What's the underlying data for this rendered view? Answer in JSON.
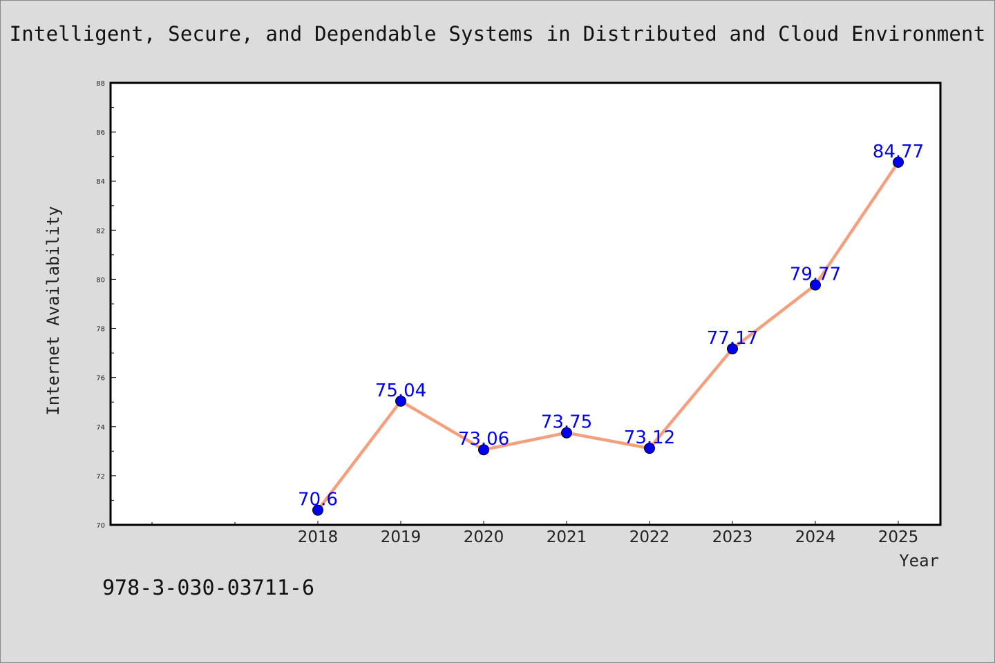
{
  "page": {
    "title": "Intelligent, Secure, and Dependable Systems in Distributed and Cloud Environment",
    "footer_code": "978-3-030-03711-6"
  },
  "chart_data": {
    "type": "line",
    "title": "Intelligent, Secure, and Dependable Systems in Distributed and Cloud Environment",
    "xlabel": "Year",
    "ylabel": "Internet Availability",
    "categories": [
      "2018",
      "2019",
      "2020",
      "2021",
      "2022",
      "2023",
      "2024",
      "2025"
    ],
    "x_slots_before_first": 2,
    "ylim": [
      70,
      88
    ],
    "yticks": [
      70,
      72,
      74,
      76,
      78,
      80,
      82,
      84,
      86,
      88
    ],
    "grid": false,
    "series": [
      {
        "values": [
          70.6,
          75.04,
          73.06,
          73.75,
          73.12,
          77.17,
          79.77,
          84.77
        ],
        "labels": [
          "70.6",
          "75.04",
          "73.06",
          "73.75",
          "73.12",
          "77.17",
          "79.77",
          "84.77"
        ],
        "line_color": "#f4a07e",
        "marker_color": "#0000ee"
      }
    ],
    "data_label_color": "#0000ee"
  }
}
